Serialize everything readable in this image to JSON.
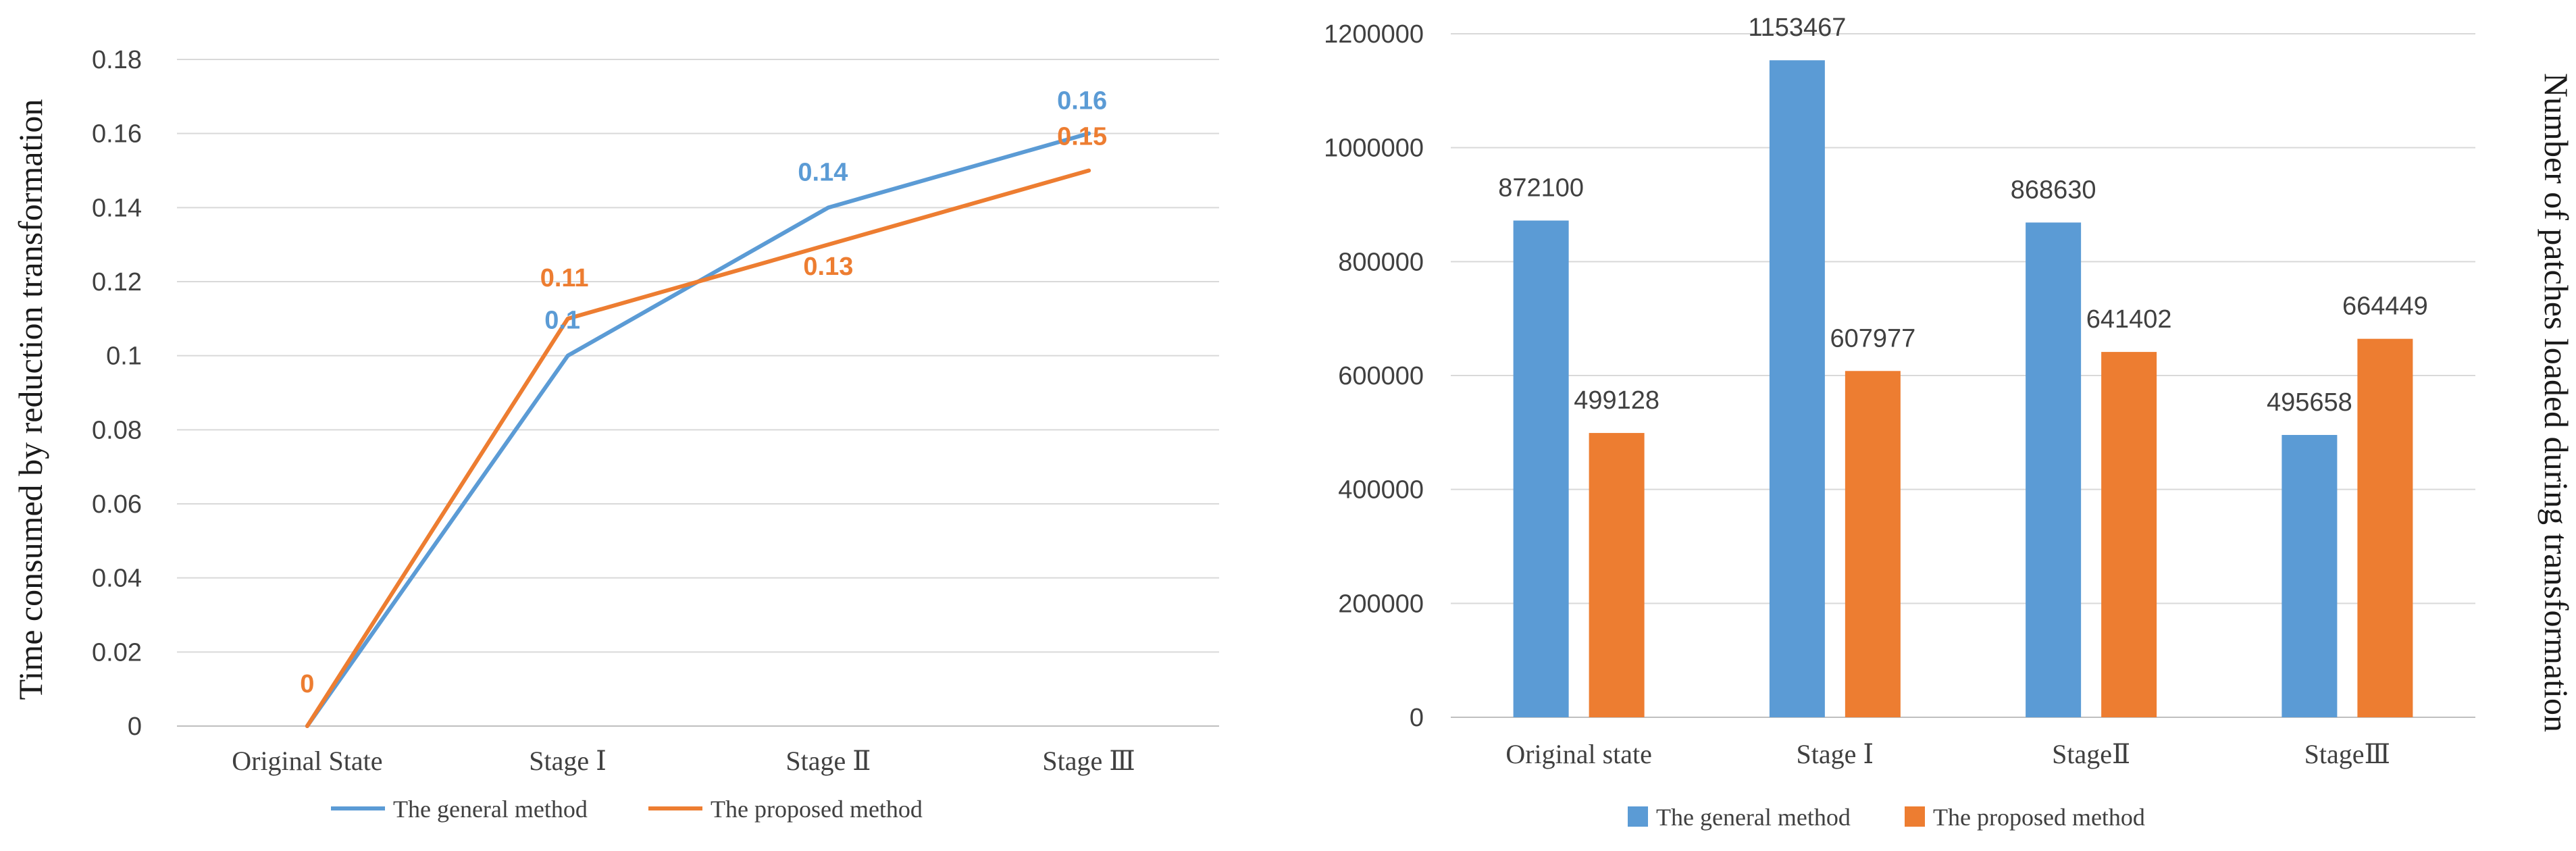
{
  "chart_data": [
    {
      "type": "line",
      "ylabel": "Time consumed by reduction transformation",
      "xlabel": "",
      "categories": [
        "Original State",
        "Stage Ⅰ",
        "Stage Ⅱ",
        "Stage Ⅲ"
      ],
      "series": [
        {
          "name": "The general method",
          "values": [
            0,
            0.1,
            0.14,
            0.16
          ],
          "labels": [
            "",
            "0.1",
            "0.14",
            "0.16"
          ],
          "color": "#5B9BD5"
        },
        {
          "name": "The proposed method",
          "values": [
            0,
            0.11,
            0.13,
            0.15
          ],
          "labels": [
            "0",
            "0.11",
            "0.13",
            "0.15"
          ],
          "color": "#ED7D31"
        }
      ],
      "ylim": [
        0,
        0.18
      ],
      "yticks": [
        "0",
        "0.02",
        "0.04",
        "0.06",
        "0.08",
        "0.1",
        "0.12",
        "0.14",
        "0.16",
        "0.18"
      ],
      "grid": true,
      "legend": "bottom"
    },
    {
      "type": "bar",
      "ylabel": "Number of patches loaded during transformation",
      "xlabel": "",
      "categories": [
        "Original state",
        "Stage Ⅰ",
        "StageⅡ",
        "StageⅢ"
      ],
      "series": [
        {
          "name": "The general method",
          "values": [
            872100,
            1153467,
            868630,
            495658
          ],
          "color": "#5B9BD5"
        },
        {
          "name": "The proposed method",
          "values": [
            499128,
            607977,
            641402,
            664449
          ],
          "color": "#ED7D31"
        }
      ],
      "ylim": [
        0,
        1200000
      ],
      "yticks": [
        "0",
        "200000",
        "400000",
        "600000",
        "800000",
        "1000000",
        "1200000"
      ],
      "grid": true,
      "legend": "bottom"
    }
  ]
}
